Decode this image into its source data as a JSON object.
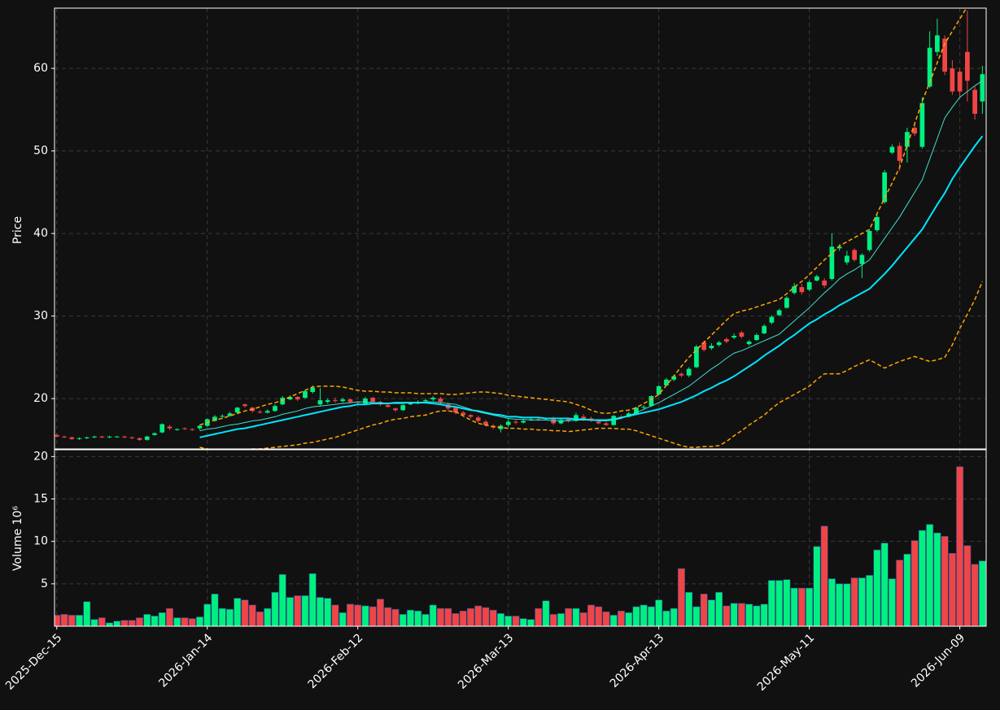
{
  "chart_data": {
    "type": "candlestick",
    "ylabel": "Price",
    "ylabel2": "Volume  10⁶",
    "up_color": "#00f080",
    "down_color": "#f04545",
    "grid": true,
    "xlim": [
      -0.3,
      123.5
    ],
    "xticks": [
      {
        "value": 0,
        "label": "2025-Dec-15"
      },
      {
        "value": 20,
        "label": "2026-Jan-14"
      },
      {
        "value": 40,
        "label": "2026-Feb-12"
      },
      {
        "value": 60,
        "label": "2026-Mar-13"
      },
      {
        "value": 80,
        "label": "2026-Apr-13"
      },
      {
        "value": 100,
        "label": "2026-May-11"
      },
      {
        "value": 120,
        "label": "2026-Jun-09"
      }
    ],
    "ylim": [
      13.9,
      67.3
    ],
    "yticks": [
      20,
      30,
      40,
      50,
      60
    ],
    "y2lim": [
      0,
      20.8
    ],
    "y2ticks": [
      5,
      10,
      15,
      20
    ],
    "open": [
      15.6,
      15.4,
      15.3,
      15.1,
      15.2,
      15.3,
      15.4,
      15.3,
      15.4,
      15.4,
      15.3,
      15.2,
      15.0,
      15.6,
      15.9,
      16.6,
      16.2,
      16.4,
      16.3,
      16.4,
      16.7,
      17.3,
      17.8,
      17.9,
      18.3,
      19.3,
      18.9,
      18.4,
      18.3,
      18.5,
      19.3,
      19.9,
      20.2,
      20.1,
      20.8,
      19.3,
      19.6,
      19.8,
      19.7,
      19.9,
      19.6,
      19.4,
      20.1,
      19.6,
      19.2,
      18.8,
      18.6,
      19.3,
      19.4,
      19.7,
      19.9,
      20.0,
      19.3,
      18.9,
      18.3,
      18.0,
      17.7,
      17.2,
      16.7,
      16.3,
      16.8,
      17.2,
      17.1,
      17.4,
      17.5,
      17.5,
      17.6,
      17.0,
      17.5,
      17.3,
      17.8,
      17.6,
      17.2,
      17.0,
      16.8,
      17.8,
      17.8,
      18.2,
      18.9,
      19.1,
      20.5,
      21.6,
      22.3,
      23.0,
      22.8,
      23.8,
      26.8,
      26.1,
      26.5,
      27.2,
      27.4,
      28.0,
      26.6,
      27.1,
      27.9,
      29.2,
      30.1,
      31.0,
      32.8,
      33.5,
      33.2,
      34.3,
      34.3,
      34.5,
      38.2,
      36.5,
      38.0,
      36.3,
      38.0,
      40.4,
      43.8,
      49.8,
      50.6,
      50.5,
      52.8,
      50.5,
      57.8,
      62.0,
      63.6,
      60.0,
      59.6,
      62.0,
      57.4,
      56.0
    ],
    "high": [
      15.7,
      15.5,
      15.4,
      15.3,
      15.4,
      15.5,
      15.5,
      15.5,
      15.5,
      15.5,
      15.4,
      15.3,
      15.5,
      15.9,
      17.0,
      16.8,
      16.4,
      16.5,
      16.4,
      16.8,
      17.6,
      18.0,
      18.1,
      18.4,
      19.0,
      19.4,
      19.0,
      18.6,
      18.7,
      19.3,
      20.3,
      20.4,
      20.3,
      21.0,
      21.6,
      21.3,
      20.0,
      20.1,
      20.1,
      20.0,
      19.7,
      20.2,
      20.2,
      19.7,
      19.3,
      18.9,
      19.3,
      19.6,
      19.8,
      20.0,
      20.3,
      20.2,
      19.5,
      19.0,
      18.5,
      18.1,
      17.9,
      17.4,
      16.9,
      16.9,
      17.5,
      17.4,
      17.5,
      17.6,
      17.7,
      17.7,
      17.8,
      17.6,
      17.7,
      18.3,
      18.1,
      17.8,
      17.4,
      17.2,
      18.0,
      18.0,
      18.4,
      19.0,
      19.2,
      20.4,
      21.6,
      22.5,
      22.9,
      23.2,
      23.8,
      26.5,
      27.0,
      26.7,
      27.0,
      27.4,
      27.9,
      28.2,
      27.1,
      27.9,
      29.0,
      30.1,
      30.9,
      32.4,
      34.0,
      33.9,
      34.3,
      35.0,
      34.6,
      40.0,
      38.7,
      37.9,
      38.2,
      37.6,
      40.5,
      42.3,
      47.7,
      50.8,
      51.0,
      52.8,
      53.5,
      56.5,
      64.5,
      66.0,
      64.0,
      61.0,
      60.0,
      67.0,
      57.8,
      60.3
    ],
    "low": [
      15.3,
      15.2,
      15.0,
      15.0,
      15.1,
      15.2,
      15.2,
      15.2,
      15.3,
      15.2,
      15.1,
      14.9,
      14.9,
      15.5,
      15.8,
      16.2,
      16.1,
      16.2,
      16.1,
      16.2,
      16.6,
      17.2,
      17.6,
      17.8,
      18.1,
      18.9,
      18.3,
      18.2,
      18.2,
      18.4,
      19.2,
      19.8,
      19.7,
      20.0,
      20.6,
      19.1,
      19.4,
      19.5,
      19.5,
      19.4,
      19.3,
      19.3,
      19.4,
      19.1,
      18.9,
      18.4,
      18.5,
      19.2,
      19.3,
      19.5,
      19.7,
      19.3,
      18.5,
      18.1,
      17.8,
      17.6,
      17.1,
      16.6,
      16.3,
      15.9,
      16.6,
      16.9,
      17.0,
      17.3,
      17.3,
      17.4,
      16.8,
      16.9,
      17.1,
      17.2,
      17.3,
      17.2,
      16.9,
      16.7,
      16.7,
      17.5,
      17.7,
      18.1,
      18.7,
      19.0,
      20.4,
      21.5,
      22.1,
      22.6,
      22.6,
      23.7,
      25.7,
      25.9,
      26.3,
      26.7,
      27.2,
      27.3,
      26.4,
      27.0,
      27.8,
      29.0,
      30.0,
      30.9,
      32.6,
      32.6,
      33.0,
      34.2,
      33.4,
      34.3,
      37.9,
      36.2,
      36.6,
      34.6,
      37.8,
      40.2,
      43.6,
      49.6,
      47.6,
      48.6,
      51.8,
      50.3,
      57.6,
      61.5,
      59.2,
      56.8,
      56.5,
      56.0,
      53.8,
      54.5
    ],
    "close": [
      15.4,
      15.3,
      15.1,
      15.2,
      15.3,
      15.4,
      15.3,
      15.4,
      15.4,
      15.3,
      15.2,
      15.0,
      15.4,
      15.8,
      16.9,
      16.4,
      16.3,
      16.3,
      16.2,
      16.7,
      17.5,
      17.8,
      17.9,
      18.2,
      18.9,
      19.1,
      18.5,
      18.3,
      18.5,
      19.1,
      20.1,
      20.2,
      19.9,
      20.9,
      21.3,
      19.8,
      19.8,
      19.7,
      19.9,
      19.6,
      19.5,
      20.0,
      19.6,
      19.3,
      19.0,
      18.6,
      19.2,
      19.5,
      19.6,
      19.8,
      20.1,
      19.6,
      18.8,
      18.3,
      18.0,
      17.8,
      17.3,
      16.8,
      16.5,
      16.7,
      17.2,
      17.1,
      17.3,
      17.5,
      17.4,
      17.6,
      17.0,
      17.4,
      17.3,
      18.0,
      17.5,
      17.4,
      17.0,
      16.8,
      17.9,
      17.7,
      18.2,
      18.9,
      19.0,
      20.3,
      21.5,
      22.3,
      22.7,
      22.8,
      23.6,
      26.3,
      25.9,
      26.4,
      26.8,
      26.9,
      27.6,
      27.5,
      26.9,
      27.7,
      28.8,
      29.9,
      30.7,
      32.2,
      33.6,
      32.9,
      34.1,
      34.8,
      33.7,
      38.4,
      38.4,
      37.3,
      36.8,
      37.4,
      40.3,
      42.0,
      47.4,
      50.5,
      48.8,
      52.3,
      52.1,
      55.8,
      62.5,
      64.0,
      59.6,
      57.2,
      57.2,
      58.5,
      54.5,
      59.3
    ],
    "volume": [
      1.3,
      1.4,
      1.3,
      1.3,
      2.9,
      0.8,
      1.0,
      0.4,
      0.6,
      0.7,
      0.7,
      1.0,
      1.4,
      1.2,
      1.6,
      2.1,
      1.0,
      1.0,
      0.9,
      1.1,
      2.6,
      3.8,
      2.1,
      2.0,
      3.3,
      3.1,
      2.5,
      1.7,
      2.1,
      4.0,
      6.1,
      3.4,
      3.6,
      3.6,
      6.2,
      3.4,
      3.3,
      2.5,
      1.6,
      2.6,
      2.5,
      2.4,
      2.3,
      3.2,
      2.2,
      2.0,
      1.4,
      1.9,
      1.8,
      1.4,
      2.5,
      2.1,
      2.1,
      1.5,
      1.8,
      2.1,
      2.4,
      2.2,
      1.9,
      1.5,
      1.2,
      1.2,
      0.9,
      0.8,
      2.1,
      3.0,
      1.4,
      1.5,
      2.1,
      2.1,
      1.6,
      2.5,
      2.3,
      1.7,
      1.3,
      1.8,
      1.6,
      2.3,
      2.5,
      2.3,
      3.1,
      1.8,
      2.1,
      6.8,
      4.0,
      2.3,
      3.8,
      3.1,
      4.0,
      2.4,
      2.7,
      2.7,
      2.6,
      2.4,
      2.6,
      5.4,
      5.4,
      5.5,
      4.5,
      4.5,
      4.5,
      9.4,
      11.8,
      5.6,
      5.0,
      5.0,
      5.7,
      5.7,
      6.0,
      9.0,
      9.8,
      5.6,
      7.8,
      8.5,
      10.1,
      11.3,
      12.0,
      11.0,
      10.6,
      8.6,
      18.8,
      9.5,
      7.3,
      7.7
    ],
    "lines": [
      {
        "color": "#00e5ff",
        "width": 2,
        "dashed": false,
        "values": [
          null,
          null,
          null,
          null,
          null,
          null,
          null,
          null,
          null,
          null,
          null,
          null,
          null,
          null,
          null,
          null,
          null,
          null,
          null,
          15.3,
          15.5,
          15.7,
          15.9,
          16.1,
          16.3,
          16.4,
          16.6,
          16.8,
          17.0,
          17.2,
          17.4,
          17.6,
          17.8,
          18.0,
          18.2,
          18.4,
          18.6,
          18.8,
          19.0,
          19.1,
          19.3,
          19.3,
          19.4,
          19.4,
          19.4,
          19.5,
          19.5,
          19.5,
          19.5,
          19.5,
          19.4,
          19.3,
          19.1,
          19.0,
          18.8,
          18.6,
          18.5,
          18.3,
          18.1,
          18.0,
          17.8,
          17.8,
          17.7,
          17.7,
          17.7,
          17.6,
          17.6,
          17.6,
          17.6,
          17.5,
          17.5,
          17.4,
          17.4,
          17.4,
          17.5,
          17.7,
          17.9,
          18.1,
          18.3,
          18.5,
          18.7,
          19.0,
          19.3,
          19.6,
          20.0,
          20.4,
          20.9,
          21.3,
          21.8,
          22.2,
          22.7,
          23.3,
          23.9,
          24.5,
          25.2,
          25.8,
          26.4,
          27.1,
          27.7,
          28.4,
          29.1,
          29.6,
          30.2,
          30.7,
          31.3,
          31.8,
          32.3,
          32.8,
          33.3,
          34.2,
          35.1,
          36.1,
          37.2,
          38.3,
          39.4,
          40.5,
          42.0,
          43.5,
          44.9,
          46.6,
          48.0,
          49.3,
          50.6,
          51.8
        ]
      },
      {
        "color": "#40e0d0",
        "width": 1,
        "dashed": false,
        "values": [
          null,
          null,
          null,
          null,
          null,
          null,
          null,
          null,
          null,
          null,
          null,
          null,
          null,
          null,
          null,
          null,
          null,
          null,
          null,
          16.1,
          16.3,
          16.4,
          16.6,
          16.8,
          16.9,
          17.1,
          17.3,
          17.4,
          17.6,
          17.8,
          18.1,
          18.3,
          18.5,
          18.8,
          19.0,
          19.1,
          19.2,
          19.3,
          19.4,
          19.5,
          19.6,
          19.6,
          19.5,
          19.5,
          19.4,
          19.4,
          19.4,
          19.5,
          19.5,
          19.6,
          19.6,
          19.5,
          19.4,
          19.3,
          19.0,
          18.7,
          18.4,
          18.2,
          18.0,
          17.8,
          17.6,
          17.5,
          17.5,
          17.4,
          17.4,
          17.4,
          17.3,
          17.3,
          17.3,
          17.4,
          17.4,
          17.4,
          17.3,
          17.3,
          17.4,
          17.6,
          17.9,
          18.3,
          18.7,
          19.1,
          19.5,
          20.0,
          20.5,
          21.0,
          21.5,
          22.2,
          22.9,
          23.6,
          24.2,
          24.9,
          25.5,
          25.8,
          26.2,
          26.6,
          27.0,
          27.4,
          27.8,
          28.6,
          29.4,
          30.2,
          31.0,
          31.9,
          32.8,
          33.6,
          34.5,
          35.1,
          35.6,
          36.2,
          36.8,
          38.1,
          39.4,
          40.7,
          42.0,
          43.5,
          45.0,
          46.5,
          49.0,
          51.5,
          54.0,
          55.3,
          56.5,
          57.2,
          57.9,
          58.5
        ]
      },
      {
        "color": "#ffa500",
        "width": 1.5,
        "dashed": true,
        "values": [
          null,
          null,
          null,
          null,
          null,
          null,
          null,
          null,
          null,
          null,
          null,
          null,
          null,
          null,
          null,
          null,
          null,
          null,
          null,
          16.8,
          17.1,
          17.4,
          17.6,
          17.9,
          18.2,
          18.5,
          18.7,
          19.0,
          19.3,
          19.5,
          19.8,
          20.2,
          20.6,
          21.0,
          21.4,
          21.5,
          21.5,
          21.5,
          21.4,
          21.2,
          21.0,
          20.9,
          20.9,
          20.8,
          20.8,
          20.7,
          20.7,
          20.7,
          20.6,
          20.6,
          20.6,
          20.6,
          20.5,
          20.5,
          20.6,
          20.7,
          20.8,
          20.8,
          20.7,
          20.6,
          20.4,
          20.3,
          20.2,
          20.1,
          20.0,
          19.9,
          19.8,
          19.7,
          19.6,
          19.3,
          19.0,
          18.6,
          18.3,
          18.2,
          18.3,
          18.5,
          18.6,
          18.9,
          19.4,
          19.9,
          20.5,
          21.6,
          22.7,
          23.9,
          25.0,
          25.9,
          26.8,
          27.7,
          28.6,
          29.5,
          30.3,
          30.6,
          30.8,
          31.1,
          31.4,
          31.7,
          32.0,
          32.7,
          33.5,
          34.2,
          35.0,
          35.9,
          36.8,
          37.6,
          38.5,
          39.0,
          39.5,
          40.0,
          40.5,
          42.4,
          44.3,
          46.1,
          48.0,
          50.7,
          53.3,
          56.0,
          58.3,
          60.7,
          63.0,
          64.5,
          66.0,
          67.5,
          69.0,
          70.0
        ]
      },
      {
        "color": "#ffa500",
        "width": 1.5,
        "dashed": true,
        "values": [
          null,
          null,
          null,
          null,
          null,
          null,
          null,
          null,
          null,
          null,
          null,
          null,
          null,
          null,
          null,
          null,
          null,
          null,
          null,
          14.1,
          13.9,
          13.8,
          13.7,
          13.7,
          13.8,
          13.8,
          13.9,
          13.9,
          14.0,
          14.1,
          14.2,
          14.3,
          14.4,
          14.6,
          14.7,
          14.9,
          15.1,
          15.3,
          15.6,
          15.9,
          16.2,
          16.5,
          16.8,
          17.0,
          17.3,
          17.5,
          17.6,
          17.8,
          17.9,
          18.0,
          18.3,
          18.5,
          18.5,
          18.4,
          17.9,
          17.4,
          17.0,
          16.8,
          16.6,
          16.5,
          16.4,
          16.4,
          16.3,
          16.3,
          16.2,
          16.2,
          16.1,
          16.1,
          16.0,
          16.1,
          16.2,
          16.3,
          16.4,
          16.4,
          16.4,
          16.3,
          16.3,
          16.1,
          15.8,
          15.5,
          15.2,
          14.9,
          14.6,
          14.3,
          14.1,
          14.1,
          14.2,
          14.2,
          14.3,
          14.8,
          15.5,
          16.1,
          16.8,
          17.4,
          18.0,
          18.8,
          19.5,
          20.0,
          20.5,
          21.0,
          21.5,
          22.3,
          23.0,
          23.0,
          23.0,
          23.4,
          23.9,
          24.3,
          24.7,
          24.2,
          23.7,
          24.1,
          24.5,
          24.8,
          25.1,
          24.8,
          24.5,
          24.7,
          25.0,
          26.5,
          28.5,
          30.2,
          32.0,
          34.2
        ]
      }
    ]
  }
}
